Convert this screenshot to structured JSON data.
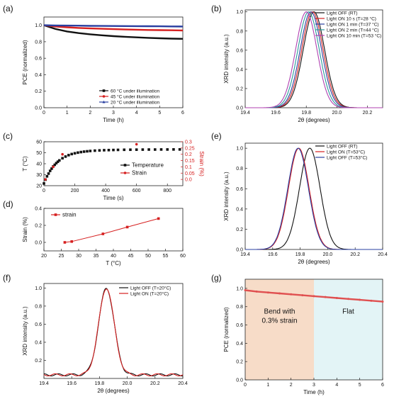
{
  "panels": [
    {
      "id": "a",
      "label": "(a)",
      "type": "line",
      "xlabel": "Time (h)",
      "ylabel": "PCE (normalized)",
      "xlim": [
        0,
        6
      ],
      "ylim": [
        0,
        1.1
      ],
      "xticks": [
        0,
        1,
        2,
        3,
        4,
        5,
        6
      ],
      "yticks": [
        0.0,
        0.2,
        0.4,
        0.6,
        0.8,
        1.0
      ],
      "ytick_labels": [
        "0.0",
        "0.2",
        "0.4",
        "0.6",
        "0.8",
        "1.0"
      ],
      "legend_position": "lower-right",
      "series": [
        {
          "name": "60 °C under illumination",
          "color": "#111111",
          "marker": "square",
          "x": [
            0,
            0.5,
            1,
            1.5,
            2,
            2.5,
            3,
            3.5,
            4,
            4.5,
            5,
            5.5,
            6
          ],
          "y": [
            1.0,
            0.955,
            0.925,
            0.905,
            0.89,
            0.878,
            0.868,
            0.86,
            0.853,
            0.847,
            0.842,
            0.838,
            0.835
          ]
        },
        {
          "name": "45 °C under illumination",
          "color": "#d62020",
          "marker": "circle",
          "x": [
            0,
            0.5,
            1,
            1.5,
            2,
            2.5,
            3,
            3.5,
            4,
            4.5,
            5,
            5.5,
            6
          ],
          "y": [
            1.0,
            0.985,
            0.975,
            0.968,
            0.962,
            0.957,
            0.953,
            0.949,
            0.946,
            0.943,
            0.941,
            0.939,
            0.937
          ]
        },
        {
          "name": "20 °C under illumination",
          "color": "#2a3fa0",
          "marker": "triangle",
          "x": [
            0,
            0.5,
            1,
            1.5,
            2,
            2.5,
            3,
            3.5,
            4,
            4.5,
            5,
            5.5,
            6
          ],
          "y": [
            1.0,
            0.998,
            0.996,
            0.995,
            0.993,
            0.992,
            0.991,
            0.99,
            0.989,
            0.988,
            0.987,
            0.986,
            0.985
          ]
        }
      ]
    },
    {
      "id": "b",
      "label": "(b)",
      "type": "line",
      "xlabel": "2θ (degrees)",
      "ylabel": "XRD intensity (a.u.)",
      "xlim": [
        19.4,
        20.3
      ],
      "ylim": [
        0,
        1.02
      ],
      "xticks": [
        19.4,
        19.6,
        19.8,
        20.0,
        20.2
      ],
      "xtick_labels": [
        "19.4",
        "19.6",
        "19.8",
        "20.0",
        "20.2"
      ],
      "yticks": [
        0.0,
        0.2,
        0.4,
        0.6,
        0.8,
        1.0
      ],
      "ytick_labels": [
        "0.0",
        "0.2",
        "0.4",
        "0.6",
        "0.8",
        "1.0"
      ],
      "legend_position": "top-right",
      "series": [
        {
          "name": "Light OFF (RT)",
          "color": "#111111",
          "peak": 19.85,
          "width": 0.07
        },
        {
          "name": "Light ON 10 s (T=28 °C)",
          "color": "#d62020",
          "peak": 19.84,
          "width": 0.07
        },
        {
          "name": "Light ON 1 min (T=37 °C)",
          "color": "#2a3fa0",
          "peak": 19.83,
          "width": 0.07
        },
        {
          "name": "Light ON 2 min (T=44 °C)",
          "color": "#2a9a9a",
          "peak": 19.815,
          "width": 0.07
        },
        {
          "name": "Light ON 10 min (T=53 °C)",
          "color": "#b040b0",
          "peak": 19.8,
          "width": 0.07
        }
      ]
    },
    {
      "id": "c",
      "label": "(c)",
      "type": "scatter",
      "xlabel": "Time (s)",
      "ylabel": "T (°C)",
      "y2label": "Strain (%)",
      "xlim": [
        0,
        900
      ],
      "ylim": [
        20,
        60
      ],
      "y2lim": [
        -0.05,
        0.3
      ],
      "xticks": [
        0,
        200,
        400,
        600,
        800
      ],
      "yticks": [
        20,
        30,
        40,
        50,
        60
      ],
      "y2ticks": [
        0.0,
        0.05,
        0.1,
        0.15,
        0.2,
        0.25,
        0.3
      ],
      "y2tick_labels": [
        "0.0",
        "0.05",
        "0.1",
        "0.15",
        "0.2",
        "0.25",
        "0.3"
      ],
      "legend_position": "lower-right",
      "series": [
        {
          "name": "Temperature",
          "color": "#111111",
          "marker": "square",
          "axis": "left",
          "x": [
            0,
            10,
            20,
            30,
            40,
            50,
            60,
            70,
            80,
            90,
            100,
            120,
            140,
            160,
            180,
            200,
            220,
            240,
            260,
            280,
            300,
            330,
            360,
            390,
            420,
            450,
            480,
            520,
            560,
            600,
            640,
            680,
            720,
            760,
            800,
            840,
            880
          ],
          "y": [
            22,
            25.5,
            28.5,
            31,
            33.5,
            35.5,
            37.5,
            39,
            40.5,
            41.8,
            43,
            45,
            46.5,
            47.8,
            48.8,
            49.5,
            50.1,
            50.6,
            51,
            51.3,
            51.6,
            51.9,
            52.1,
            52.3,
            52.4,
            52.5,
            52.6,
            52.7,
            52.75,
            52.8,
            52.85,
            52.9,
            52.9,
            52.95,
            52.95,
            53,
            53
          ]
        },
        {
          "name": "Strain",
          "color": "#d62020",
          "marker": "circle",
          "axis": "right",
          "x": [
            10,
            60,
            120,
            600
          ],
          "y": [
            0.0,
            0.1,
            0.2,
            0.28
          ]
        }
      ]
    },
    {
      "id": "d",
      "label": "(d)",
      "type": "line",
      "xlabel": "T (°C)",
      "ylabel": "Strain (%)",
      "xlim": [
        20,
        60
      ],
      "ylim": [
        -0.1,
        0.4
      ],
      "xticks": [
        20,
        25,
        30,
        35,
        40,
        45,
        50,
        55,
        60
      ],
      "yticks": [
        0.0,
        0.2,
        0.4
      ],
      "ytick_labels": [
        "0.0",
        "0.2",
        "0.4"
      ],
      "legend_position": "top-left",
      "series": [
        {
          "name": "strain",
          "color": "#d62020",
          "marker": "square",
          "x": [
            26,
            28,
            37,
            44,
            53
          ],
          "y": [
            0.0,
            0.01,
            0.1,
            0.18,
            0.28
          ]
        }
      ]
    },
    {
      "id": "e",
      "label": "(e)",
      "type": "line",
      "xlabel": "2θ (degrees)",
      "ylabel": "XRD intensity (a.u.)",
      "xlim": [
        19.4,
        20.4
      ],
      "ylim": [
        0,
        1.05
      ],
      "xticks": [
        19.4,
        19.6,
        19.8,
        20.0,
        20.2,
        20.4
      ],
      "xtick_labels": [
        "19.4",
        "19.6",
        "19.8",
        "20.0",
        "20.2",
        "20.4"
      ],
      "yticks": [
        0.0,
        0.2,
        0.4,
        0.6,
        0.8,
        1.0
      ],
      "ytick_labels": [
        "0.0",
        "0.2",
        "0.4",
        "0.6",
        "0.8",
        "1.0"
      ],
      "legend_position": "top-right",
      "series": [
        {
          "name": "Light OFF (RT)",
          "color": "#111111",
          "peak": 19.87,
          "width": 0.075
        },
        {
          "name": "Light ON (T=53°C)",
          "color": "#d62020",
          "peak": 19.79,
          "width": 0.075
        },
        {
          "name": "Light OFF (T=53°C)",
          "color": "#2a3fa0",
          "peak": 19.785,
          "width": 0.075
        }
      ]
    },
    {
      "id": "f",
      "label": "(f)",
      "type": "line",
      "xlabel": "2θ (degrees)",
      "ylabel": "XRD intensity (a.u.)",
      "xlim": [
        19.4,
        20.4
      ],
      "ylim": [
        0,
        1.05
      ],
      "xticks": [
        19.4,
        19.6,
        19.8,
        20.0,
        20.2,
        20.4
      ],
      "xtick_labels": [
        "19.4",
        "19.6",
        "19.8",
        "20.0",
        "20.2",
        "20.4"
      ],
      "yticks": [
        0.2,
        0.4,
        0.6,
        0.8,
        1.0
      ],
      "ytick_labels": [
        "0.2",
        "0.4",
        "0.6",
        "0.8",
        "1.0"
      ],
      "legend_position": "top-right",
      "series": [
        {
          "name": "Light OFF (T=20°C)",
          "color": "#111111",
          "peak": 19.85,
          "width": 0.055
        },
        {
          "name": "Light ON (T=20°C)",
          "color": "#d62020",
          "peak": 19.85,
          "width": 0.055
        }
      ]
    },
    {
      "id": "g",
      "label": "(g)",
      "type": "line",
      "xlabel": "Time (h)",
      "ylabel": "PCE (normalized)",
      "xlim": [
        0,
        6
      ],
      "ylim": [
        0,
        1.1
      ],
      "xticks": [
        0,
        1,
        2,
        3,
        4,
        5,
        6
      ],
      "yticks": [
        0.0,
        0.2,
        0.4,
        0.6,
        0.8,
        1.0
      ],
      "ytick_labels": [
        "0.0",
        "0.2",
        "0.4",
        "0.6",
        "0.8",
        "1.0"
      ],
      "regions": [
        {
          "x": [
            0,
            3
          ],
          "color": "#f7dcc8",
          "text_lines": [
            "Bend with",
            "0.3% strain"
          ]
        },
        {
          "x": [
            3,
            6
          ],
          "color": "#e3f4f6",
          "text_lines": [
            "Flat"
          ]
        }
      ],
      "series": [
        {
          "name": "",
          "color": "#e05050",
          "marker": "circle",
          "x": [
            0,
            0.5,
            1,
            1.5,
            2,
            2.5,
            3,
            3.5,
            4,
            4.5,
            5,
            5.5,
            6
          ],
          "y": [
            0.98,
            0.965,
            0.955,
            0.945,
            0.935,
            0.925,
            0.915,
            0.905,
            0.895,
            0.885,
            0.875,
            0.865,
            0.855
          ]
        }
      ]
    }
  ],
  "chart_data": [
    {
      "type": "line",
      "panel": "(a)",
      "xlabel": "Time (h)",
      "ylabel": "PCE (normalized)",
      "xlim": [
        0,
        6
      ],
      "ylim": [
        0,
        1.1
      ],
      "series": [
        {
          "name": "60 °C under illumination",
          "x": [
            0,
            1,
            2,
            3,
            4,
            5,
            6
          ],
          "y": [
            1.0,
            0.925,
            0.89,
            0.868,
            0.853,
            0.842,
            0.835
          ]
        },
        {
          "name": "45 °C under illumination",
          "x": [
            0,
            1,
            2,
            3,
            4,
            5,
            6
          ],
          "y": [
            1.0,
            0.975,
            0.962,
            0.953,
            0.946,
            0.941,
            0.937
          ]
        },
        {
          "name": "20 °C under illumination",
          "x": [
            0,
            1,
            2,
            3,
            4,
            5,
            6
          ],
          "y": [
            1.0,
            0.996,
            0.993,
            0.991,
            0.989,
            0.987,
            0.985
          ]
        }
      ]
    },
    {
      "type": "line",
      "panel": "(b)",
      "xlabel": "2θ (degrees)",
      "ylabel": "XRD intensity (a.u.)",
      "xlim": [
        19.4,
        20.3
      ],
      "ylim": [
        0,
        1.02
      ],
      "series": [
        {
          "name": "Light OFF (RT)",
          "peak_x": 19.85,
          "peak_y": 1.0
        },
        {
          "name": "Light ON 10 s (T=28 °C)",
          "peak_x": 19.84,
          "peak_y": 1.0
        },
        {
          "name": "Light ON 1 min (T=37 °C)",
          "peak_x": 19.83,
          "peak_y": 1.0
        },
        {
          "name": "Light ON 2 min (T=44 °C)",
          "peak_x": 19.815,
          "peak_y": 1.0
        },
        {
          "name": "Light ON 10 min (T=53 °C)",
          "peak_x": 19.8,
          "peak_y": 1.0
        }
      ]
    },
    {
      "type": "scatter",
      "panel": "(c)",
      "xlabel": "Time (s)",
      "ylabel": "T (°C)",
      "y2label": "Strain (%)",
      "xlim": [
        0,
        900
      ],
      "ylim": [
        20,
        60
      ],
      "y2lim": [
        -0.05,
        0.3
      ],
      "series": [
        {
          "name": "Temperature",
          "x": [
            0,
            50,
            100,
            200,
            300,
            400,
            600,
            880
          ],
          "y": [
            22,
            35.5,
            43,
            49.5,
            51.6,
            52.4,
            52.8,
            53
          ]
        },
        {
          "name": "Strain",
          "x": [
            10,
            60,
            120,
            600
          ],
          "y": [
            0.0,
            0.1,
            0.2,
            0.28
          ]
        }
      ]
    },
    {
      "type": "line",
      "panel": "(d)",
      "xlabel": "T (°C)",
      "ylabel": "Strain (%)",
      "xlim": [
        20,
        60
      ],
      "ylim": [
        -0.1,
        0.4
      ],
      "series": [
        {
          "name": "strain",
          "x": [
            26,
            28,
            37,
            44,
            53
          ],
          "y": [
            0.0,
            0.01,
            0.1,
            0.18,
            0.28
          ]
        }
      ]
    },
    {
      "type": "line",
      "panel": "(e)",
      "xlabel": "2θ (degrees)",
      "ylabel": "XRD intensity (a.u.)",
      "xlim": [
        19.4,
        20.4
      ],
      "ylim": [
        0,
        1.05
      ],
      "series": [
        {
          "name": "Light OFF (RT)",
          "peak_x": 19.87,
          "peak_y": 1.0
        },
        {
          "name": "Light ON (T=53°C)",
          "peak_x": 19.79,
          "peak_y": 1.0
        },
        {
          "name": "Light OFF (T=53°C)",
          "peak_x": 19.785,
          "peak_y": 1.0
        }
      ]
    },
    {
      "type": "line",
      "panel": "(f)",
      "xlabel": "2θ (degrees)",
      "ylabel": "XRD intensity (a.u.)",
      "xlim": [
        19.4,
        20.4
      ],
      "ylim": [
        0,
        1.05
      ],
      "series": [
        {
          "name": "Light OFF (T=20°C)",
          "peak_x": 19.85,
          "peak_y": 1.0
        },
        {
          "name": "Light ON (T=20°C)",
          "peak_x": 19.85,
          "peak_y": 1.0
        }
      ]
    },
    {
      "type": "line",
      "panel": "(g)",
      "xlabel": "Time (h)",
      "ylabel": "PCE (normalized)",
      "xlim": [
        0,
        6
      ],
      "ylim": [
        0,
        1.1
      ],
      "annotations": [
        "Bend with 0.3% strain",
        "Flat"
      ],
      "series": [
        {
          "name": "",
          "x": [
            0,
            1,
            2,
            3,
            4,
            5,
            6
          ],
          "y": [
            0.98,
            0.955,
            0.935,
            0.915,
            0.895,
            0.875,
            0.855
          ]
        }
      ]
    }
  ]
}
